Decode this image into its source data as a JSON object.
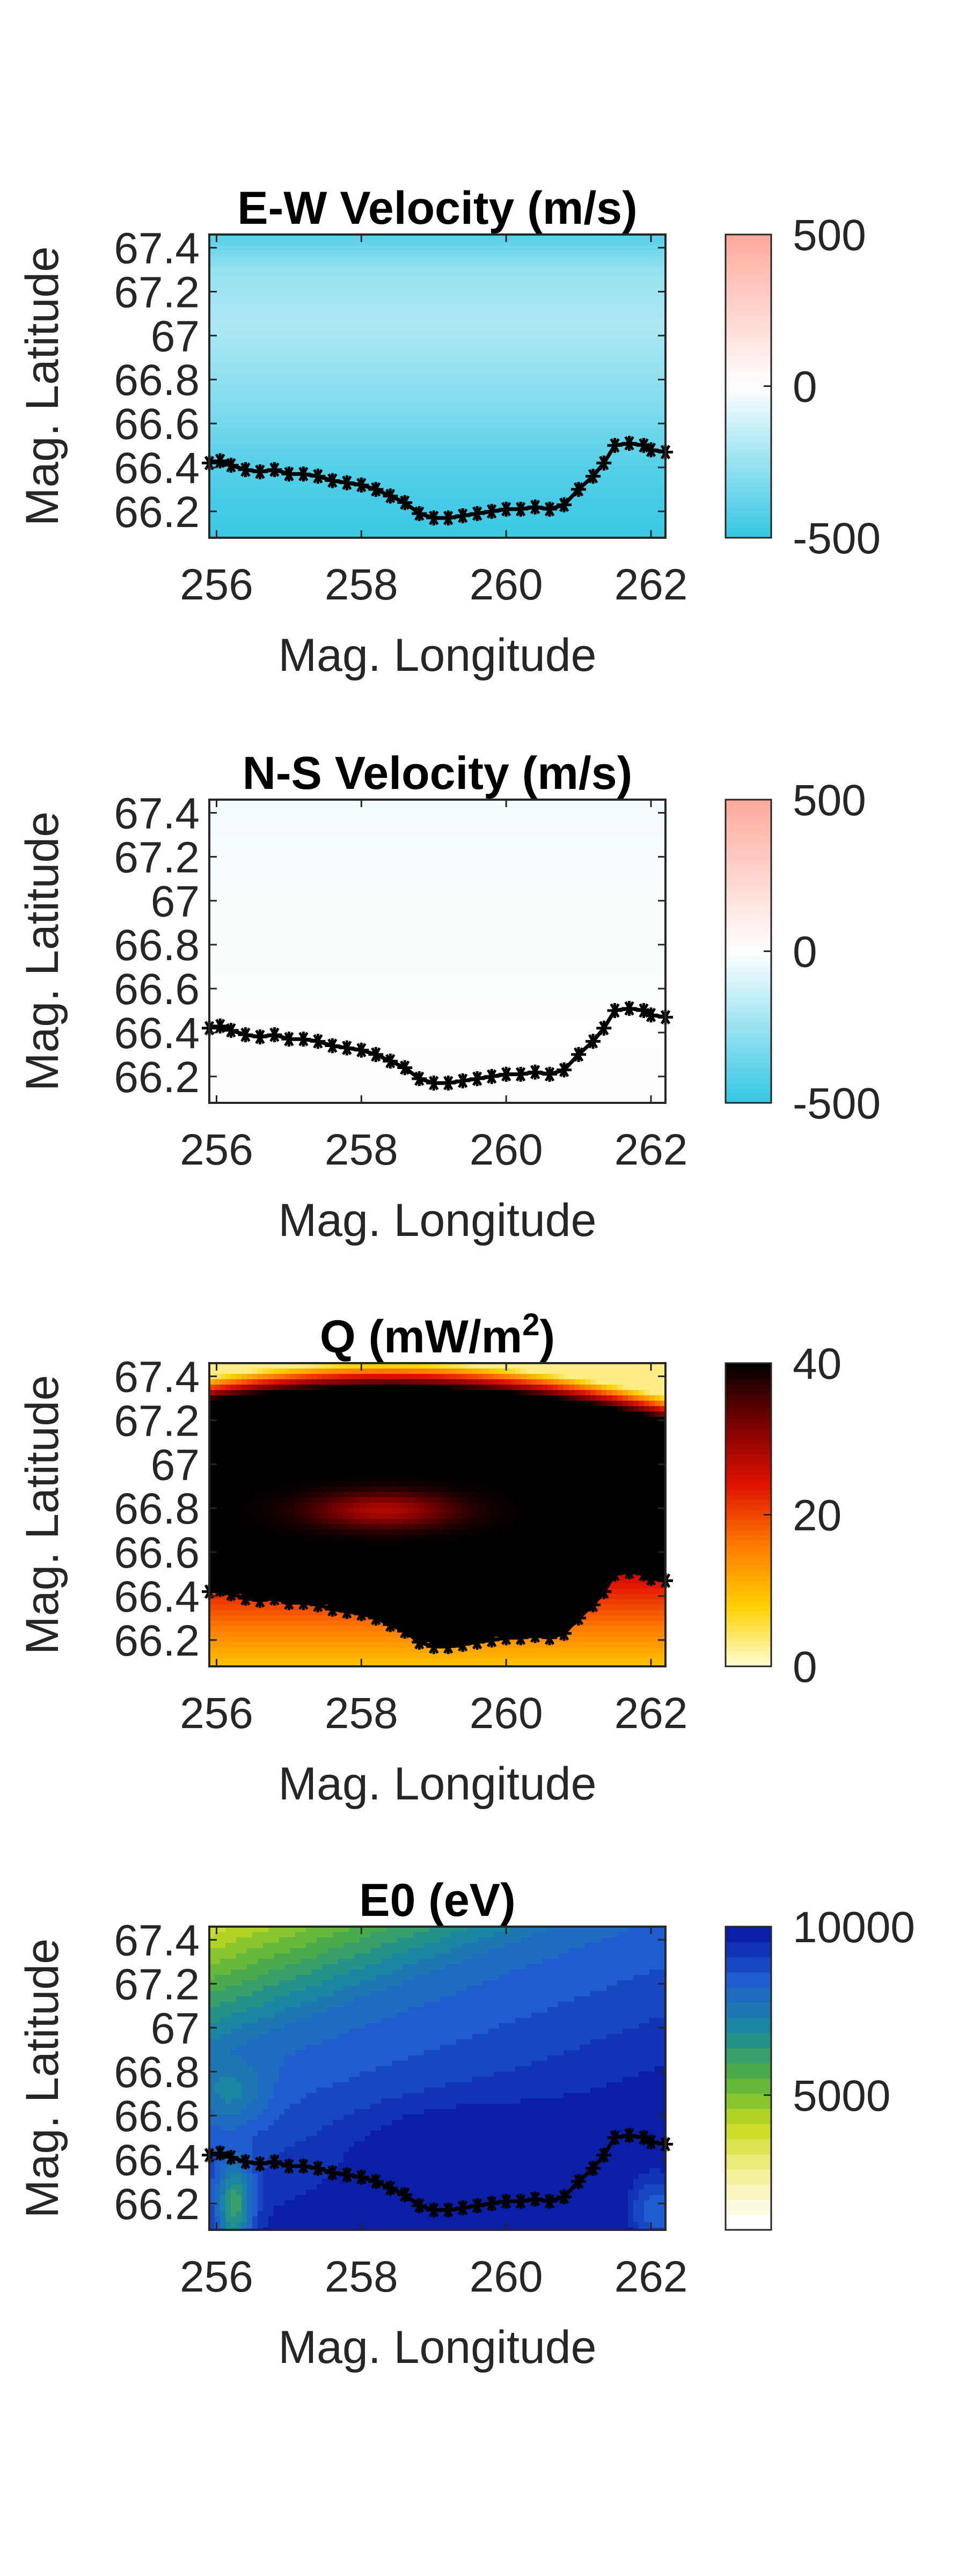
{
  "chart_data": [
    {
      "type": "heatmap",
      "title": "E-W Velocity (m/s)",
      "title_sup": "",
      "title_suffix": "",
      "xlabel": "Mag. Longitude",
      "ylabel": "Mag. Latitude",
      "xlim": [
        255.9,
        262.2
      ],
      "ylim": [
        66.08,
        67.46
      ],
      "xticks": [
        "256",
        "258",
        "260",
        "262"
      ],
      "xtick_values": [
        256,
        258,
        260,
        262
      ],
      "yticks": [
        "66.2",
        "66.4",
        "66.6",
        "66.8",
        "67",
        "67.2",
        "67.4"
      ],
      "ytick_values": [
        66.2,
        66.4,
        66.6,
        66.8,
        67.0,
        67.2,
        67.4
      ],
      "colorbar": {
        "ticks": [
          "500",
          "0",
          "-500"
        ],
        "tick_values": [
          500,
          0,
          -500
        ],
        "range": [
          -500,
          500
        ],
        "colormap": [
          "#33c6e3",
          "#ffffff",
          "#ffa99c"
        ],
        "discrete": false
      },
      "field_by_latitude": [
        [
          66.08,
          -480
        ],
        [
          66.4,
          -420
        ],
        [
          66.7,
          -300
        ],
        [
          67.05,
          -200
        ],
        [
          67.3,
          -260
        ],
        [
          67.46,
          -420
        ]
      ]
    },
    {
      "type": "heatmap",
      "title": "N-S Velocity (m/s)",
      "title_sup": "",
      "title_suffix": "",
      "xlabel": "Mag. Longitude",
      "ylabel": "Mag. Latitude",
      "xlim": [
        255.9,
        262.2
      ],
      "ylim": [
        66.08,
        67.46
      ],
      "xticks": [
        "256",
        "258",
        "260",
        "262"
      ],
      "xtick_values": [
        256,
        258,
        260,
        262
      ],
      "yticks": [
        "66.2",
        "66.4",
        "66.6",
        "66.8",
        "67",
        "67.2",
        "67.4"
      ],
      "ytick_values": [
        66.2,
        66.4,
        66.6,
        66.8,
        67.0,
        67.2,
        67.4
      ],
      "colorbar": {
        "ticks": [
          "500",
          "0",
          "-500"
        ],
        "tick_values": [
          500,
          0,
          -500
        ],
        "range": [
          -500,
          500
        ],
        "colormap": [
          "#33c6e3",
          "#ffffff",
          "#ffa99c"
        ],
        "discrete": false
      },
      "field_by_latitude": [
        [
          66.08,
          15
        ],
        [
          66.3,
          5
        ],
        [
          66.7,
          -15
        ],
        [
          67.2,
          -20
        ],
        [
          67.46,
          -25
        ]
      ]
    },
    {
      "type": "heatmap",
      "title": "Q (mW/m",
      "title_sup": "2",
      "title_suffix": ")",
      "xlabel": "Mag. Longitude",
      "ylabel": "Mag. Latitude",
      "xlim": [
        255.9,
        262.2
      ],
      "ylim": [
        66.08,
        67.46
      ],
      "xticks": [
        "256",
        "258",
        "260",
        "262"
      ],
      "xtick_values": [
        256,
        258,
        260,
        262
      ],
      "yticks": [
        "66.2",
        "66.4",
        "66.6",
        "66.8",
        "67",
        "67.2",
        "67.4"
      ],
      "ytick_values": [
        66.2,
        66.4,
        66.6,
        66.8,
        67.0,
        67.2,
        67.4
      ],
      "colorbar": {
        "ticks": [
          "40",
          "20",
          "0"
        ],
        "tick_values": [
          40,
          20,
          0
        ],
        "range": [
          0,
          40
        ],
        "colormap": [
          "#ffffd4",
          "#ffd000",
          "#ff7b00",
          "#e01200",
          "#7a0000",
          "#000000"
        ],
        "discrete": false
      }
    },
    {
      "type": "heatmap",
      "title": "E0 (eV)",
      "title_sup": "",
      "title_suffix": "",
      "xlabel": "Mag. Longitude",
      "ylabel": "Mag. Latitude",
      "xlim": [
        255.9,
        262.2
      ],
      "ylim": [
        66.08,
        67.46
      ],
      "xticks": [
        "256",
        "258",
        "260",
        "262"
      ],
      "xtick_values": [
        256,
        258,
        260,
        262
      ],
      "yticks": [
        "66.2",
        "66.4",
        "66.6",
        "66.8",
        "67",
        "67.2",
        "67.4"
      ],
      "ytick_values": [
        66.2,
        66.4,
        66.6,
        66.8,
        67.0,
        67.2,
        67.4
      ],
      "colorbar": {
        "ticks": [
          "10000",
          "5000"
        ],
        "tick_values": [
          10000,
          5000
        ],
        "range": [
          1000,
          10000
        ],
        "colormap": [
          "#ffffff",
          "#f5ef9a",
          "#c9dc1e",
          "#53b13d",
          "#1a8a9b",
          "#2060d0",
          "#0a1ea8"
        ],
        "discrete": true
      }
    }
  ],
  "boundary_curve": {
    "marker": "*",
    "color": "#000000",
    "points": [
      [
        255.9,
        66.42
      ],
      [
        256.05,
        66.43
      ],
      [
        256.2,
        66.41
      ],
      [
        256.4,
        66.39
      ],
      [
        256.6,
        66.38
      ],
      [
        256.8,
        66.39
      ],
      [
        257.0,
        66.37
      ],
      [
        257.2,
        66.37
      ],
      [
        257.4,
        66.36
      ],
      [
        257.6,
        66.34
      ],
      [
        257.8,
        66.33
      ],
      [
        258.0,
        66.32
      ],
      [
        258.2,
        66.3
      ],
      [
        258.4,
        66.27
      ],
      [
        258.6,
        66.24
      ],
      [
        258.8,
        66.19
      ],
      [
        259.0,
        66.17
      ],
      [
        259.2,
        66.17
      ],
      [
        259.4,
        66.18
      ],
      [
        259.6,
        66.19
      ],
      [
        259.8,
        66.2
      ],
      [
        260.0,
        66.21
      ],
      [
        260.2,
        66.21
      ],
      [
        260.4,
        66.22
      ],
      [
        260.6,
        66.21
      ],
      [
        260.8,
        66.23
      ],
      [
        261.0,
        66.3
      ],
      [
        261.2,
        66.36
      ],
      [
        261.35,
        66.42
      ],
      [
        261.5,
        66.5
      ],
      [
        261.7,
        66.51
      ],
      [
        261.9,
        66.5
      ],
      [
        262.0,
        66.48
      ],
      [
        262.2,
        66.47
      ]
    ]
  },
  "colors": {
    "axis": "#262626",
    "text": "#262626",
    "title": "#000000"
  }
}
